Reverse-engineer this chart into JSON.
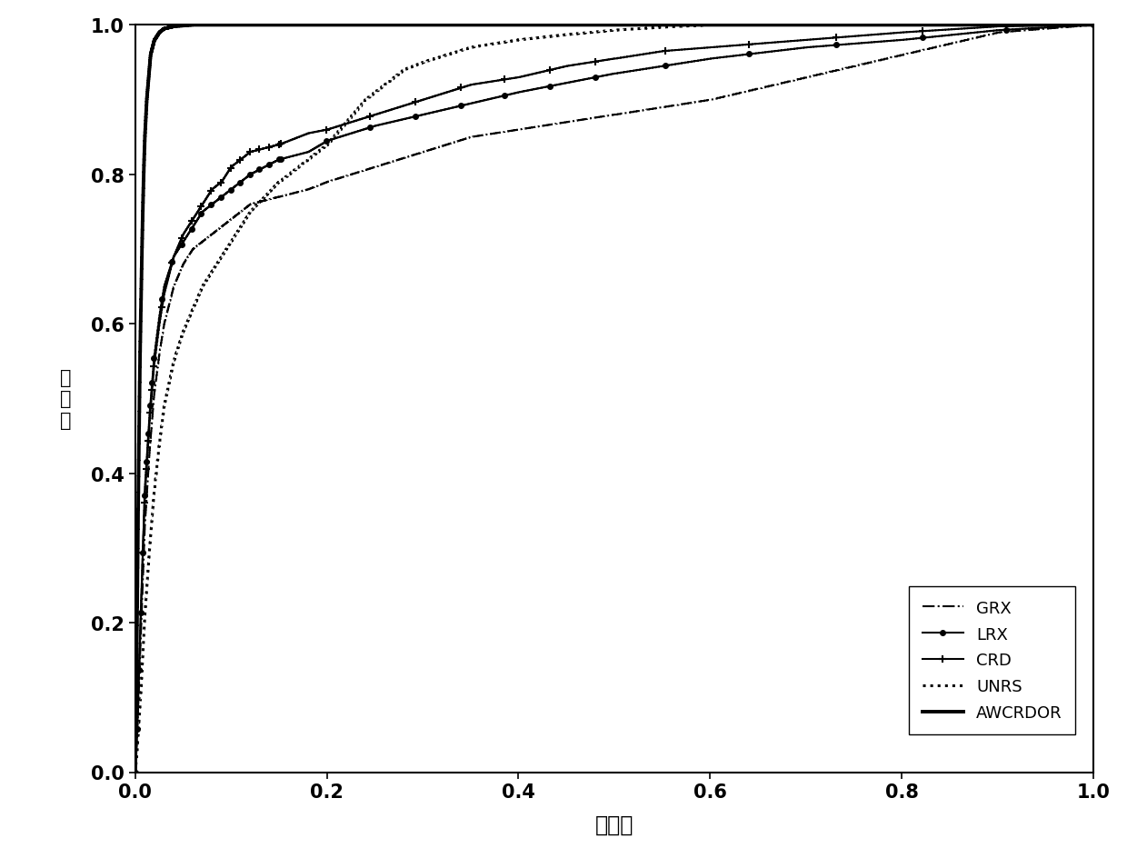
{
  "xlabel": "虚警率",
  "ylabel_chars": "检测率",
  "xlim": [
    0.0,
    1.0
  ],
  "ylim": [
    0.0,
    1.0
  ],
  "xticks": [
    0.0,
    0.2,
    0.4,
    0.6,
    0.8,
    1.0
  ],
  "yticks": [
    0.0,
    0.2,
    0.4,
    0.6,
    0.8,
    1.0
  ],
  "methods": [
    "GRX",
    "LRX",
    "CRD",
    "UNRS",
    "AWCRDOR"
  ],
  "awcrdor_fpr": [
    0.0,
    0.001,
    0.002,
    0.003,
    0.004,
    0.005,
    0.006,
    0.007,
    0.008,
    0.009,
    0.01,
    0.012,
    0.014,
    0.016,
    0.018,
    0.02,
    0.025,
    0.03,
    0.04,
    0.05,
    0.06,
    0.07,
    0.08,
    0.09,
    0.1,
    0.15,
    0.2,
    1.0
  ],
  "awcrdor_tpr": [
    0.0,
    0.1,
    0.22,
    0.35,
    0.46,
    0.56,
    0.63,
    0.7,
    0.76,
    0.81,
    0.85,
    0.9,
    0.93,
    0.96,
    0.97,
    0.98,
    0.99,
    0.995,
    0.998,
    0.999,
    1.0,
    1.0,
    1.0,
    1.0,
    1.0,
    1.0,
    1.0,
    1.0
  ],
  "crd_fpr": [
    0.0,
    0.002,
    0.004,
    0.006,
    0.008,
    0.01,
    0.015,
    0.02,
    0.025,
    0.03,
    0.04,
    0.05,
    0.06,
    0.07,
    0.08,
    0.09,
    0.1,
    0.12,
    0.15,
    0.18,
    0.2,
    0.25,
    0.3,
    0.35,
    0.4,
    0.45,
    0.5,
    0.55,
    0.6,
    0.7,
    0.8,
    0.9,
    1.0
  ],
  "crd_tpr": [
    0.0,
    0.06,
    0.14,
    0.22,
    0.3,
    0.37,
    0.47,
    0.55,
    0.6,
    0.64,
    0.69,
    0.72,
    0.74,
    0.76,
    0.78,
    0.79,
    0.81,
    0.83,
    0.84,
    0.855,
    0.86,
    0.88,
    0.9,
    0.92,
    0.93,
    0.945,
    0.955,
    0.965,
    0.97,
    0.98,
    0.99,
    0.998,
    1.0
  ],
  "grx_fpr": [
    0.0,
    0.002,
    0.004,
    0.006,
    0.008,
    0.01,
    0.015,
    0.02,
    0.025,
    0.03,
    0.04,
    0.05,
    0.06,
    0.07,
    0.08,
    0.09,
    0.1,
    0.12,
    0.15,
    0.18,
    0.2,
    0.25,
    0.3,
    0.35,
    0.4,
    0.5,
    0.6,
    0.7,
    0.8,
    0.9,
    1.0
  ],
  "grx_tpr": [
    0.0,
    0.05,
    0.12,
    0.19,
    0.26,
    0.33,
    0.43,
    0.51,
    0.56,
    0.6,
    0.65,
    0.68,
    0.7,
    0.71,
    0.72,
    0.73,
    0.74,
    0.76,
    0.77,
    0.78,
    0.79,
    0.81,
    0.83,
    0.85,
    0.86,
    0.88,
    0.9,
    0.93,
    0.96,
    0.99,
    1.0
  ],
  "lrx_fpr": [
    0.0,
    0.002,
    0.004,
    0.006,
    0.008,
    0.01,
    0.015,
    0.02,
    0.025,
    0.03,
    0.04,
    0.05,
    0.06,
    0.07,
    0.08,
    0.09,
    0.1,
    0.12,
    0.15,
    0.18,
    0.2,
    0.25,
    0.3,
    0.35,
    0.4,
    0.5,
    0.6,
    0.7,
    0.8,
    0.9,
    1.0
  ],
  "lrx_tpr": [
    0.0,
    0.06,
    0.14,
    0.22,
    0.3,
    0.38,
    0.48,
    0.56,
    0.61,
    0.65,
    0.69,
    0.71,
    0.73,
    0.75,
    0.76,
    0.77,
    0.78,
    0.8,
    0.82,
    0.83,
    0.845,
    0.865,
    0.88,
    0.895,
    0.91,
    0.935,
    0.955,
    0.97,
    0.98,
    0.993,
    1.0
  ],
  "unrs_fpr": [
    0.0,
    0.002,
    0.004,
    0.006,
    0.008,
    0.01,
    0.015,
    0.02,
    0.025,
    0.03,
    0.04,
    0.05,
    0.06,
    0.07,
    0.08,
    0.09,
    0.1,
    0.12,
    0.15,
    0.18,
    0.2,
    0.22,
    0.24,
    0.26,
    0.28,
    0.3,
    0.35,
    0.4,
    0.45,
    0.5,
    0.55,
    0.6,
    0.7,
    1.0
  ],
  "unrs_tpr": [
    0.0,
    0.03,
    0.07,
    0.11,
    0.16,
    0.21,
    0.3,
    0.38,
    0.44,
    0.49,
    0.55,
    0.59,
    0.62,
    0.65,
    0.67,
    0.69,
    0.71,
    0.75,
    0.79,
    0.82,
    0.84,
    0.87,
    0.9,
    0.92,
    0.94,
    0.95,
    0.97,
    0.98,
    0.987,
    0.993,
    0.997,
    1.0,
    1.0,
    1.0
  ]
}
